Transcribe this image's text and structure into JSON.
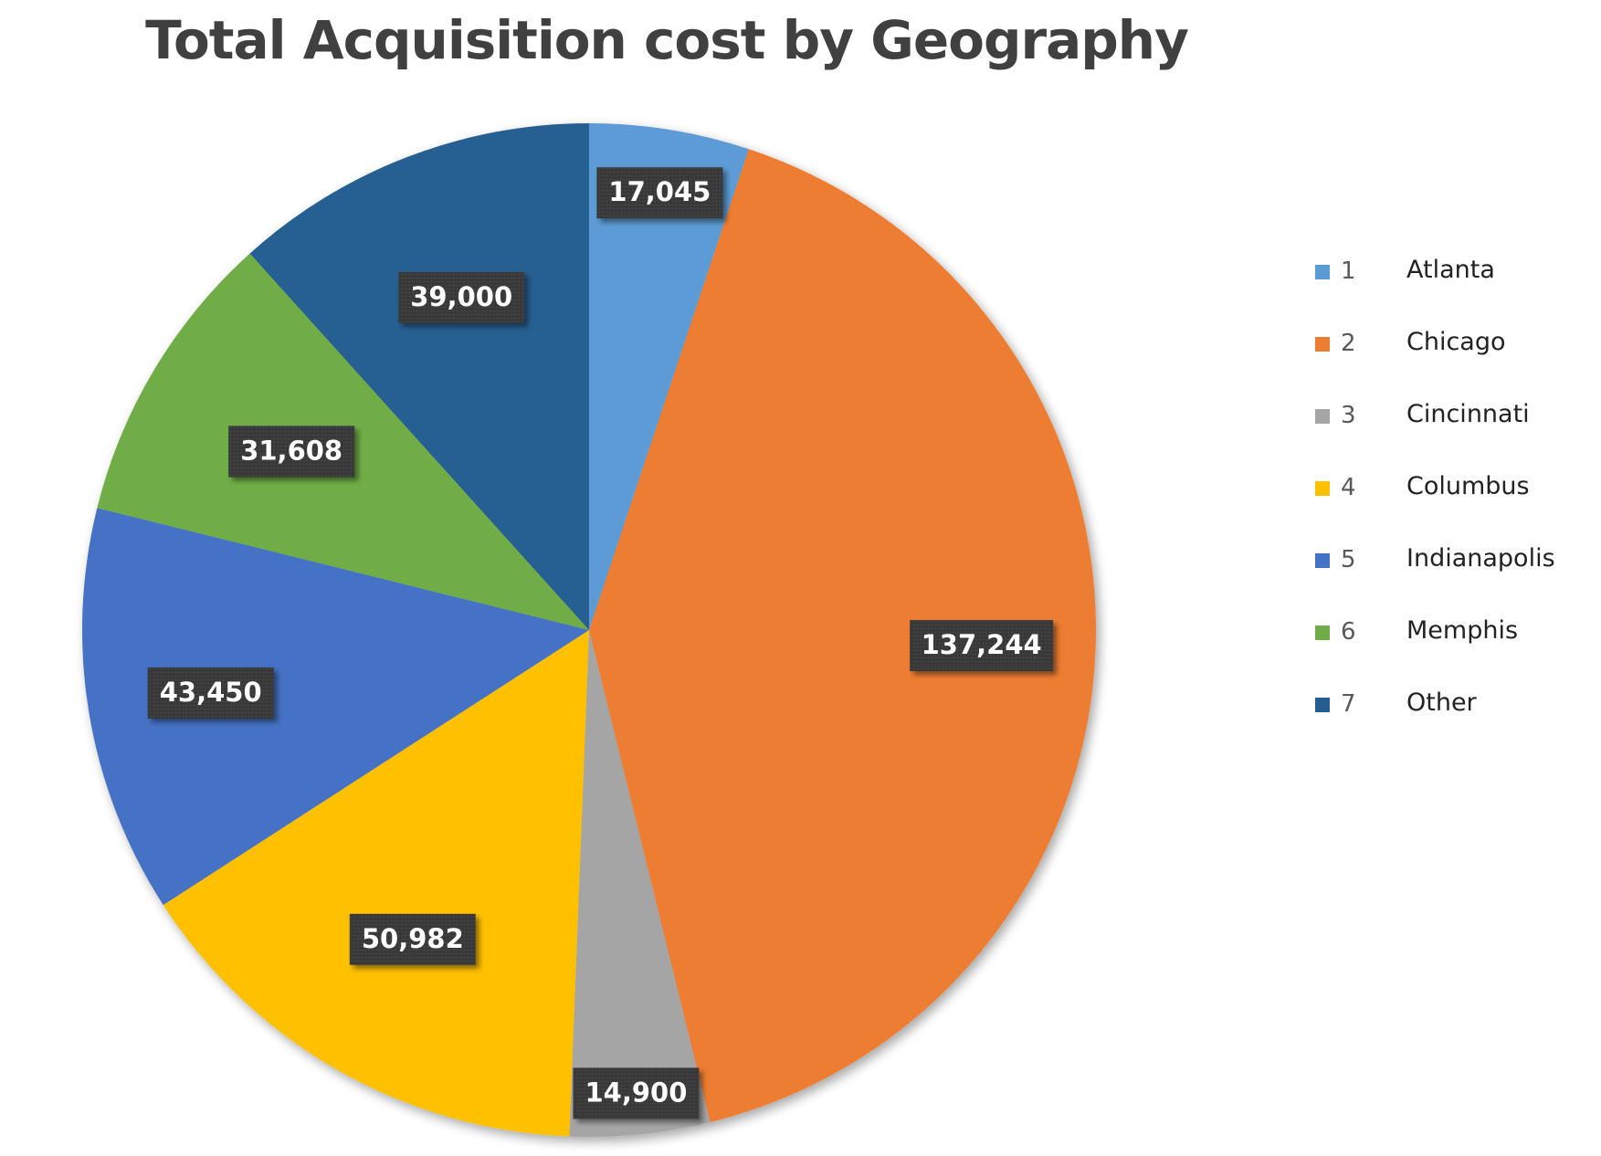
{
  "chart_data": {
    "type": "pie",
    "title": "Total Acquisition cost by Geography",
    "categories": [
      "1",
      "2",
      "3",
      "4",
      "5",
      "6",
      "7"
    ],
    "category_names": [
      "Atlanta",
      "Chicago",
      "Cincinnati",
      "Columbus",
      "Indianapolis",
      "Memphis",
      "Other"
    ],
    "values": [
      17045,
      137244,
      14900,
      50982,
      43450,
      31608,
      39000
    ],
    "data_labels": [
      "17,045",
      "137,244",
      "14,900",
      "50,982",
      "43,450",
      "31,608",
      "39,000"
    ],
    "colors": [
      "#5B9BD5",
      "#ED7D31",
      "#A5A5A5",
      "#FFC000",
      "#4472C4",
      "#70AD47",
      "#255E91"
    ],
    "legend_position": "right",
    "start_angle": "12 o'clock",
    "direction": "clockwise"
  }
}
